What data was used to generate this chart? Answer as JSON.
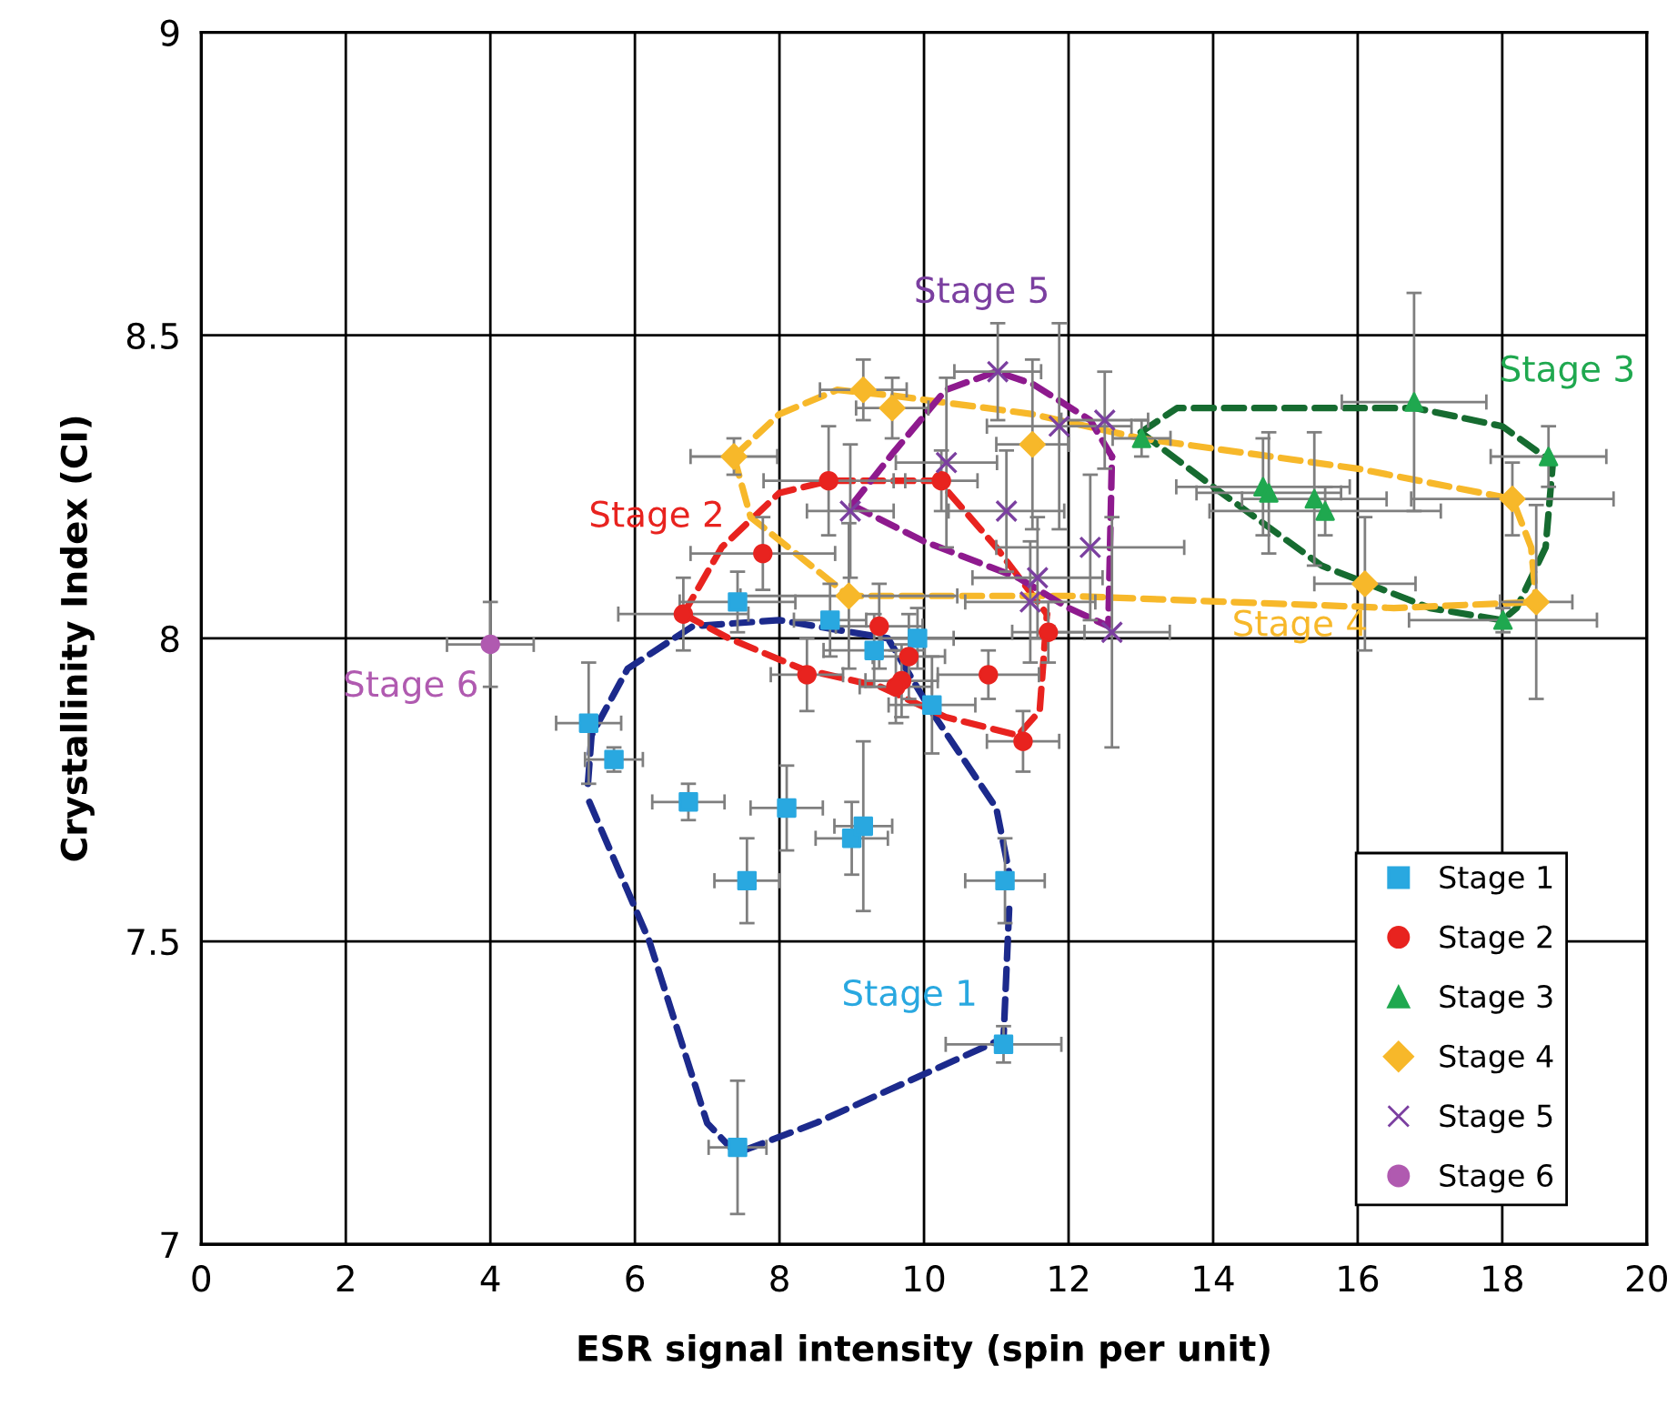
{
  "chart_data": {
    "type": "scatter",
    "xlabel": "ESR signal intensity (spin per unit)",
    "ylabel": "Crystallinity Index (CI)",
    "xlim": [
      0,
      20
    ],
    "xticks": [
      0,
      2,
      4,
      6,
      8,
      10,
      12,
      14,
      16,
      18,
      20
    ],
    "ylim": [
      7,
      9
    ],
    "yticks": [
      7,
      7.5,
      8,
      8.5,
      9
    ],
    "grid": true,
    "legend": "bottom right",
    "series": [
      {
        "name": "Stage 1",
        "color": "#29a8e0",
        "marker": "square",
        "x": [
          5.36,
          5.71,
          6.74,
          7.55,
          7.42,
          8.1,
          8.7,
          9.0,
          9.16,
          9.31,
          9.91,
          10.11,
          11.12,
          11.1,
          7.42
        ],
        "values": [
          7.86,
          7.8,
          7.73,
          7.6,
          8.06,
          7.72,
          8.03,
          7.67,
          7.69,
          7.98,
          8.0,
          7.89,
          7.6,
          7.33,
          7.16
        ],
        "xerrors": [
          0.45,
          0.4,
          0.5,
          0.45,
          0.8,
          0.5,
          0.5,
          0.5,
          0.4,
          0.7,
          0.5,
          0.6,
          0.55,
          0.8,
          0.4
        ],
        "errors": [
          0.1,
          0.02,
          0.03,
          0.07,
          0.05,
          0.07,
          0.06,
          0.06,
          0.14,
          0.06,
          0.05,
          0.08,
          0.07,
          0.03,
          0.11
        ]
      },
      {
        "name": "Stage 2",
        "color": "#e8231f",
        "marker": "circle",
        "x": [
          6.67,
          7.77,
          8.68,
          10.24,
          8.38,
          9.38,
          9.79,
          9.69,
          9.61,
          10.89,
          11.37,
          11.72
        ],
        "values": [
          8.04,
          8.14,
          8.26,
          8.26,
          7.94,
          8.02,
          7.97,
          7.93,
          7.92,
          7.94,
          7.83,
          8.01
        ],
        "xerrors": [
          0.9,
          1.0,
          0.9,
          0.5,
          0.5,
          0.6,
          0.5,
          0.5,
          0.5,
          0.7,
          0.5,
          0.5
        ],
        "errors": [
          0.06,
          0.06,
          0.09,
          0.05,
          0.06,
          0.07,
          0.07,
          0.06,
          0.06,
          0.04,
          0.05,
          0.05
        ]
      },
      {
        "name": "Stage 3",
        "color": "#1fa84f",
        "marker": "triangle",
        "x": [
          13.01,
          14.69,
          14.77,
          15.4,
          15.55,
          16.78,
          18.64,
          18.01
        ],
        "values": [
          8.33,
          8.25,
          8.24,
          8.23,
          8.21,
          8.39,
          8.3,
          8.03
        ],
        "xerrors": [
          0.4,
          1.2,
          1.0,
          1.0,
          1.6,
          1.0,
          0.8,
          1.3
        ],
        "errors": [
          0.03,
          0.08,
          0.1,
          0.11,
          0.04,
          0.18,
          0.05,
          0.02
        ]
      },
      {
        "name": "Stage 4",
        "color": "#f7b82a",
        "marker": "diamond",
        "x": [
          7.37,
          9.16,
          9.56,
          11.5,
          8.96,
          18.14,
          18.47,
          16.1
        ],
        "values": [
          8.3,
          8.41,
          8.38,
          8.32,
          8.07,
          8.23,
          8.06,
          8.09
        ],
        "xerrors": [
          0.6,
          0.6,
          0.5,
          0.5,
          1.5,
          1.4,
          0.5,
          0.7
        ],
        "errors": [
          0.03,
          0.05,
          0.05,
          0.14,
          0.12,
          0.06,
          0.16,
          0.11
        ]
      },
      {
        "name": "Stage 5",
        "color": "#7b3fa0",
        "marker": "cross",
        "x": [
          11.02,
          8.98,
          10.31,
          11.14,
          11.87,
          12.5,
          12.3,
          11.57,
          11.47,
          12.6
        ],
        "values": [
          8.44,
          8.21,
          8.29,
          8.21,
          8.35,
          8.36,
          8.15,
          8.1,
          8.06,
          8.01
        ],
        "xerrors": [
          0.6,
          0.6,
          0.7,
          0.8,
          1.0,
          0.6,
          1.3,
          0.9,
          0.9,
          0.8
        ],
        "errors": [
          0.08,
          0.11,
          0.14,
          0.1,
          0.17,
          0.08,
          0.12,
          0.1,
          0.1,
          0.19
        ]
      },
      {
        "name": "Stage 6",
        "color": "#b05ab0",
        "marker": "circle",
        "x": [
          4.0
        ],
        "values": [
          7.99
        ],
        "xerrors": [
          0.6
        ],
        "errors": [
          0.07
        ]
      },
      {
        "type": "line",
        "color": "#1c2a8c",
        "line_style": "dashed",
        "marker": "none",
        "x": [
          5.35,
          5.4,
          5.9,
          6.8,
          8.0,
          9.5,
          10.1,
          11.0,
          11.2
        ],
        "values": [
          7.76,
          7.84,
          7.95,
          8.02,
          8.03,
          8.0,
          7.88,
          7.72,
          7.6
        ]
      },
      {
        "type": "line",
        "color": "#1c2a8c",
        "line_style": "dashed",
        "marker": "none",
        "x": [
          5.37,
          6.2,
          7.0,
          7.4,
          8.5,
          11.1,
          11.18
        ],
        "values": [
          7.73,
          7.5,
          7.2,
          7.15,
          7.2,
          7.34,
          7.56
        ]
      },
      {
        "type": "line",
        "color": "#e8231f",
        "line_style": "dashed",
        "marker": "none",
        "x": [
          6.67,
          7.2,
          8.0,
          8.7,
          10.2,
          11.0,
          11.7
        ],
        "values": [
          8.04,
          8.15,
          8.24,
          8.26,
          8.26,
          8.15,
          8.04
        ]
      },
      {
        "type": "line",
        "color": "#e8231f",
        "line_style": "dashed",
        "marker": "none",
        "x": [
          6.67,
          7.3,
          8.3,
          9.4,
          10.3,
          11.3,
          11.6,
          11.7
        ],
        "values": [
          8.04,
          8.0,
          7.95,
          7.92,
          7.87,
          7.84,
          7.88,
          8.04
        ]
      },
      {
        "type": "line",
        "color": "#166b30",
        "line_style": "dashed",
        "marker": "none",
        "x": [
          13.0,
          13.5,
          14.5,
          16.8,
          18.0,
          18.7
        ],
        "values": [
          8.34,
          8.38,
          8.38,
          8.38,
          8.35,
          8.29
        ]
      },
      {
        "type": "line",
        "color": "#166b30",
        "line_style": "dashed",
        "marker": "none",
        "x": [
          13.0,
          14.0,
          15.5,
          17.0,
          18.0,
          18.2,
          18.6,
          18.7
        ],
        "values": [
          8.34,
          8.25,
          8.12,
          8.05,
          8.03,
          8.05,
          8.15,
          8.29
        ]
      },
      {
        "type": "line",
        "color": "#f7b82a",
        "line_style": "dashed",
        "marker": "none",
        "x": [
          7.37,
          8.0,
          8.8,
          9.6,
          11.5,
          13.0,
          16.0,
          18.14,
          18.4,
          18.47
        ],
        "values": [
          8.3,
          8.37,
          8.41,
          8.4,
          8.37,
          8.33,
          8.28,
          8.23,
          8.15,
          8.06
        ]
      },
      {
        "type": "line",
        "color": "#f7b82a",
        "line_style": "dashed",
        "marker": "none",
        "x": [
          7.37,
          7.6,
          8.96,
          12.0,
          16.5,
          18.47
        ],
        "values": [
          8.3,
          8.2,
          8.07,
          8.07,
          8.05,
          8.06
        ]
      },
      {
        "type": "line",
        "color": "#8e1a8e",
        "line_style": "dashed",
        "marker": "none",
        "x": [
          9.0,
          9.6,
          10.3,
          11.0,
          11.5,
          12.3,
          12.6
        ],
        "values": [
          8.22,
          8.31,
          8.41,
          8.44,
          8.42,
          8.36,
          8.3
        ]
      },
      {
        "type": "line",
        "color": "#8e1a8e",
        "line_style": "dashed",
        "marker": "none",
        "x": [
          9.0,
          10.0,
          11.3,
          12.0,
          12.55,
          12.6
        ],
        "values": [
          8.22,
          8.16,
          8.1,
          8.05,
          8.02,
          8.3
        ]
      }
    ],
    "annotations": [
      "Stage 1",
      "Stage 2",
      "Stage 3",
      "Stage 4",
      "Stage 5",
      "Stage 6"
    ]
  }
}
